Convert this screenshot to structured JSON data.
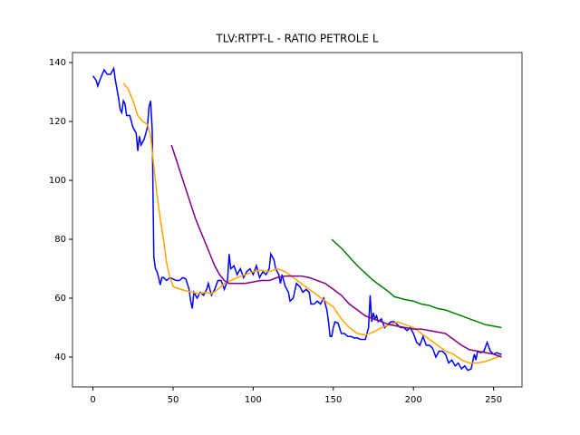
{
  "chart_data": {
    "type": "line",
    "title": "TLV:RTPT-L - RATIO PETROLE L",
    "xlim": [
      -12.75,
      267.75
    ],
    "xticks": [
      0,
      50,
      100,
      150,
      200,
      250
    ],
    "ylim": [
      29.85,
      143.4
    ],
    "yticks": [
      40,
      60,
      80,
      100,
      120,
      140
    ],
    "series": [
      {
        "color": "blue",
        "x": [
          0,
          2,
          3,
          5,
          7,
          9,
          11,
          13,
          14,
          16,
          17,
          18,
          19,
          20,
          21,
          23,
          25,
          27,
          28,
          29,
          30,
          32,
          34,
          35,
          36,
          37,
          38,
          39,
          40,
          41,
          42,
          43,
          44,
          46,
          48,
          50,
          52,
          54,
          56,
          58,
          60,
          61,
          62,
          63,
          65,
          67,
          69,
          71,
          72,
          74,
          76,
          78,
          80,
          82,
          84,
          85,
          86,
          88,
          90,
          92,
          94,
          96,
          98,
          100,
          102,
          104,
          106,
          108,
          110,
          111,
          113,
          114,
          116,
          117,
          118,
          120,
          122,
          123,
          125,
          127,
          129,
          131,
          133,
          135,
          136,
          138,
          140,
          142,
          144,
          146,
          147,
          148,
          149,
          150,
          151,
          153,
          155,
          157,
          159,
          161,
          163,
          165,
          167,
          170,
          172,
          173,
          174,
          175,
          176,
          177,
          178,
          180,
          182,
          184,
          186,
          188,
          190,
          192,
          194,
          196,
          198,
          200,
          202,
          204,
          206,
          208,
          210,
          212,
          214,
          216,
          218,
          220,
          222,
          224,
          226,
          228,
          230,
          232,
          234,
          236,
          238,
          239,
          240,
          242,
          244,
          246,
          248,
          250,
          252,
          254,
          255
        ],
        "values": [
          135.5,
          134,
          132,
          135,
          137.5,
          136,
          136,
          138,
          134,
          128,
          124,
          123,
          127,
          126,
          122,
          122,
          118,
          116,
          110,
          115,
          112,
          114,
          118,
          125,
          127,
          117,
          74,
          70,
          69,
          67,
          64.5,
          67,
          67,
          66,
          67,
          66.5,
          66,
          66,
          67,
          66.5,
          63,
          59,
          56.5,
          62,
          60,
          62,
          61,
          63,
          65,
          61,
          63,
          66,
          66,
          63,
          66,
          75,
          70,
          71,
          68,
          70,
          67,
          69,
          70,
          68,
          71,
          67,
          69,
          68,
          70,
          75,
          73,
          70,
          68,
          65,
          68,
          64,
          62,
          59,
          60,
          65,
          64,
          62,
          63,
          62,
          58,
          58,
          59,
          58,
          60,
          56,
          52,
          47,
          47,
          50,
          52,
          51.5,
          48,
          48,
          47,
          47,
          46.5,
          46.5,
          46,
          46,
          50,
          61,
          52,
          55,
          53,
          54,
          52,
          53,
          50,
          51,
          52,
          52,
          51,
          50,
          50,
          49,
          50,
          48,
          45,
          44,
          47,
          44,
          44,
          43,
          40,
          42,
          42,
          41,
          38,
          39,
          37,
          38,
          36,
          37,
          35.5,
          36,
          41,
          39,
          42,
          41.5,
          42,
          45,
          42,
          41,
          41.5,
          41,
          41
        ]
      },
      {
        "color": "orange",
        "x": [
          19,
          22,
          25,
          28,
          31,
          34,
          36,
          38,
          40,
          42,
          44,
          46,
          48,
          50,
          52,
          55,
          58,
          62,
          66,
          70,
          74,
          78,
          82,
          86,
          90,
          95,
          100,
          105,
          110,
          115,
          120,
          125,
          130,
          135,
          140,
          145,
          150,
          155,
          160,
          165,
          170,
          175,
          180,
          185,
          190,
          195,
          200,
          205,
          210,
          215,
          220,
          225,
          230,
          235,
          240,
          245,
          250,
          255
        ],
        "values": [
          133,
          131,
          127,
          122,
          120,
          119,
          115,
          105,
          95,
          87,
          80,
          72,
          67,
          64,
          63.5,
          63,
          62.5,
          62,
          61.5,
          62,
          61.5,
          63,
          65,
          66,
          67,
          68,
          69,
          69.5,
          69,
          70,
          69,
          67,
          65,
          63,
          61,
          59,
          57,
          53,
          50,
          48,
          47.5,
          48.5,
          50,
          51,
          52,
          51,
          50,
          48,
          46,
          44,
          42,
          41,
          39,
          38,
          38,
          38.5,
          39.5,
          40.5
        ]
      },
      {
        "color": "purple",
        "x": [
          49,
          52,
          55,
          58,
          61,
          64,
          67,
          70,
          73,
          76,
          79,
          82,
          85,
          90,
          95,
          100,
          105,
          110,
          115,
          120,
          125,
          130,
          135,
          140,
          145,
          150,
          155,
          160,
          165,
          170,
          175,
          180,
          185,
          190,
          195,
          200,
          205,
          210,
          215,
          220,
          225,
          230,
          235,
          240,
          245,
          250,
          255
        ],
        "values": [
          112,
          107,
          102,
          97,
          92,
          87,
          83,
          79,
          75,
          71,
          68,
          66,
          65,
          65,
          65,
          65.5,
          66,
          66,
          67,
          67.5,
          67.5,
          67.5,
          67,
          66,
          65,
          63,
          61,
          58,
          56,
          54,
          53,
          52,
          51,
          50.5,
          50,
          49.5,
          49.5,
          49,
          48.5,
          48,
          46,
          44,
          42.5,
          42,
          41.5,
          41,
          40
        ]
      },
      {
        "color": "green",
        "x": [
          149,
          155,
          160,
          165,
          170,
          175,
          180,
          185,
          188,
          195,
          200,
          205,
          210,
          215,
          220,
          225,
          230,
          235,
          240,
          245,
          250,
          255
        ],
        "values": [
          80,
          77,
          74,
          71,
          68.5,
          66,
          64,
          62,
          60.5,
          59.5,
          59,
          58,
          57.5,
          56.5,
          56,
          55,
          54,
          53,
          52,
          51,
          50.5,
          50
        ]
      }
    ]
  }
}
